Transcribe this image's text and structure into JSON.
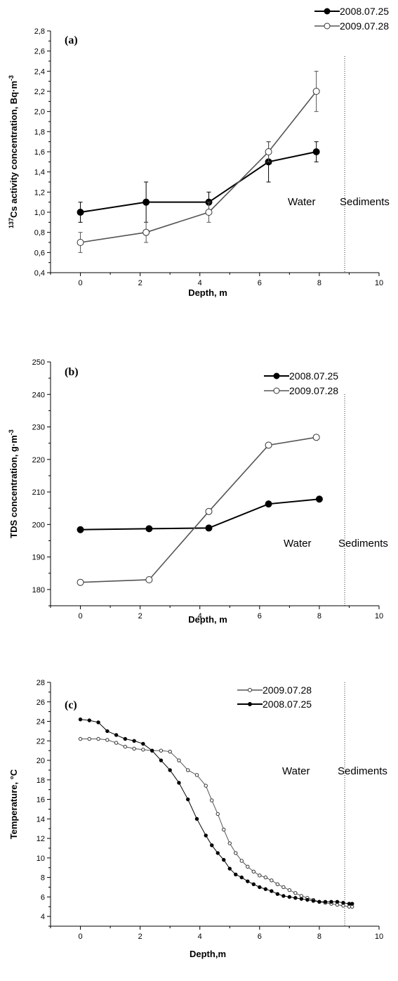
{
  "chart_data": [
    {
      "type": "line",
      "panel_label": "(a)",
      "ylabel_sup": "137",
      "ylabel": "Cs activity concentration, Bq·m",
      "ylabel_exp": "-3",
      "xlabel": "Depth, m",
      "xlim": [
        -1,
        10
      ],
      "ylim": [
        0.4,
        2.8
      ],
      "xticks": [
        "0",
        "2",
        "4",
        "6",
        "8",
        "10"
      ],
      "xtick_values": [
        0,
        2,
        4,
        6,
        8,
        10
      ],
      "yticks": [
        "0,4",
        "0,6",
        "0,8",
        "1,0",
        "1,2",
        "1,4",
        "1,6",
        "1,8",
        "2,0",
        "2,2",
        "2,4",
        "2,6",
        "2,8"
      ],
      "ytick_values": [
        0.4,
        0.6,
        0.8,
        1.0,
        1.2,
        1.4,
        1.6,
        1.8,
        2.0,
        2.2,
        2.4,
        2.6,
        2.8
      ],
      "boundary_x": 8.85,
      "region_labels": [
        "Water",
        "Sediments"
      ],
      "series": [
        {
          "name": "2008.07.25",
          "marker": "filled",
          "color": "#000000",
          "x": [
            0,
            2.2,
            4.3,
            6.3,
            7.9
          ],
          "y": [
            1.0,
            1.1,
            1.1,
            1.5,
            1.6
          ],
          "err": [
            0.1,
            0.2,
            0.1,
            0.2,
            0.1
          ]
        },
        {
          "name": "2009.07.28",
          "marker": "open",
          "color": "#555555",
          "x": [
            0,
            2.2,
            4.3,
            6.3,
            7.9
          ],
          "y": [
            0.7,
            0.8,
            1.0,
            1.6,
            2.2
          ],
          "err": [
            0.1,
            0.1,
            0.1,
            0.1,
            0.2
          ]
        }
      ]
    },
    {
      "type": "line",
      "panel_label": "(b)",
      "ylabel": "TDS concentration, g·m",
      "ylabel_exp": "-3",
      "xlabel": "Depth, m",
      "xlim": [
        -1,
        10
      ],
      "ylim": [
        175,
        250
      ],
      "xticks": [
        "0",
        "2",
        "4",
        "6",
        "8",
        "10"
      ],
      "xtick_values": [
        0,
        2,
        4,
        6,
        8,
        10
      ],
      "yticks": [
        "180",
        "190",
        "200",
        "210",
        "220",
        "230",
        "240",
        "250"
      ],
      "ytick_values": [
        180,
        190,
        200,
        210,
        220,
        230,
        240,
        250
      ],
      "boundary_x": 8.85,
      "region_labels": [
        "Water",
        "Sediments"
      ],
      "series": [
        {
          "name": "2008.07.25",
          "marker": "filled",
          "color": "#000000",
          "x": [
            0,
            2.3,
            4.3,
            6.3,
            8.0
          ],
          "y": [
            198.4,
            198.7,
            198.9,
            206.3,
            207.8
          ]
        },
        {
          "name": "2009.07.28",
          "marker": "open",
          "color": "#555555",
          "x": [
            0,
            2.3,
            4.3,
            6.3,
            7.9
          ],
          "y": [
            182.2,
            183.0,
            204.0,
            224.4,
            226.8
          ]
        }
      ]
    },
    {
      "type": "line",
      "panel_label": "(c)",
      "ylabel": "Temperature, °C",
      "xlabel": "Depth,m",
      "xlim": [
        -1,
        10
      ],
      "ylim": [
        3,
        28
      ],
      "xticks": [
        "0",
        "2",
        "4",
        "6",
        "8",
        "10"
      ],
      "xtick_values": [
        0,
        2,
        4,
        6,
        8,
        10
      ],
      "yticks": [
        "4",
        "6",
        "8",
        "10",
        "12",
        "14",
        "16",
        "18",
        "20",
        "22",
        "24",
        "26",
        "28"
      ],
      "ytick_values": [
        4,
        6,
        8,
        10,
        12,
        14,
        16,
        18,
        20,
        22,
        24,
        26,
        28
      ],
      "boundary_x": 8.85,
      "region_labels": [
        "Water",
        "Sediments"
      ],
      "series": [
        {
          "name": "2009.07.28",
          "marker": "open",
          "color": "#555555",
          "x": [
            0.0,
            0.3,
            0.6,
            0.9,
            1.2,
            1.5,
            1.8,
            2.1,
            2.4,
            2.7,
            3.0,
            3.3,
            3.6,
            3.9,
            4.2,
            4.4,
            4.6,
            4.8,
            5.0,
            5.2,
            5.4,
            5.6,
            5.8,
            6.0,
            6.2,
            6.4,
            6.6,
            6.8,
            7.0,
            7.2,
            7.4,
            7.6,
            7.8,
            8.0,
            8.2,
            8.4,
            8.6,
            8.8,
            9.0,
            9.1
          ],
          "y": [
            22.2,
            22.2,
            22.2,
            22.1,
            21.8,
            21.4,
            21.2,
            21.1,
            21.0,
            21.0,
            20.9,
            20.0,
            19.0,
            18.5,
            17.4,
            15.9,
            14.5,
            12.9,
            11.5,
            10.5,
            9.7,
            9.1,
            8.6,
            8.2,
            8.0,
            7.7,
            7.3,
            7.0,
            6.7,
            6.4,
            6.1,
            5.9,
            5.7,
            5.5,
            5.4,
            5.3,
            5.2,
            5.1,
            5.0,
            5.0
          ]
        },
        {
          "name": "2008.07.25",
          "marker": "filled",
          "color": "#000000",
          "x": [
            0.0,
            0.3,
            0.6,
            0.9,
            1.2,
            1.5,
            1.8,
            2.1,
            2.4,
            2.7,
            3.0,
            3.3,
            3.6,
            3.9,
            4.2,
            4.4,
            4.6,
            4.8,
            5.0,
            5.2,
            5.4,
            5.6,
            5.8,
            6.0,
            6.2,
            6.4,
            6.6,
            6.8,
            7.0,
            7.2,
            7.4,
            7.6,
            7.8,
            8.0,
            8.2,
            8.4,
            8.6,
            8.8,
            9.0,
            9.1
          ],
          "y": [
            24.2,
            24.1,
            23.9,
            23.0,
            22.6,
            22.2,
            22.0,
            21.7,
            21.0,
            20.0,
            19.0,
            17.7,
            16.0,
            14.0,
            12.3,
            11.3,
            10.5,
            9.8,
            8.9,
            8.3,
            8.0,
            7.6,
            7.3,
            7.0,
            6.8,
            6.6,
            6.3,
            6.1,
            6.0,
            5.9,
            5.8,
            5.7,
            5.6,
            5.5,
            5.5,
            5.5,
            5.5,
            5.4,
            5.3,
            5.3
          ]
        }
      ]
    }
  ]
}
